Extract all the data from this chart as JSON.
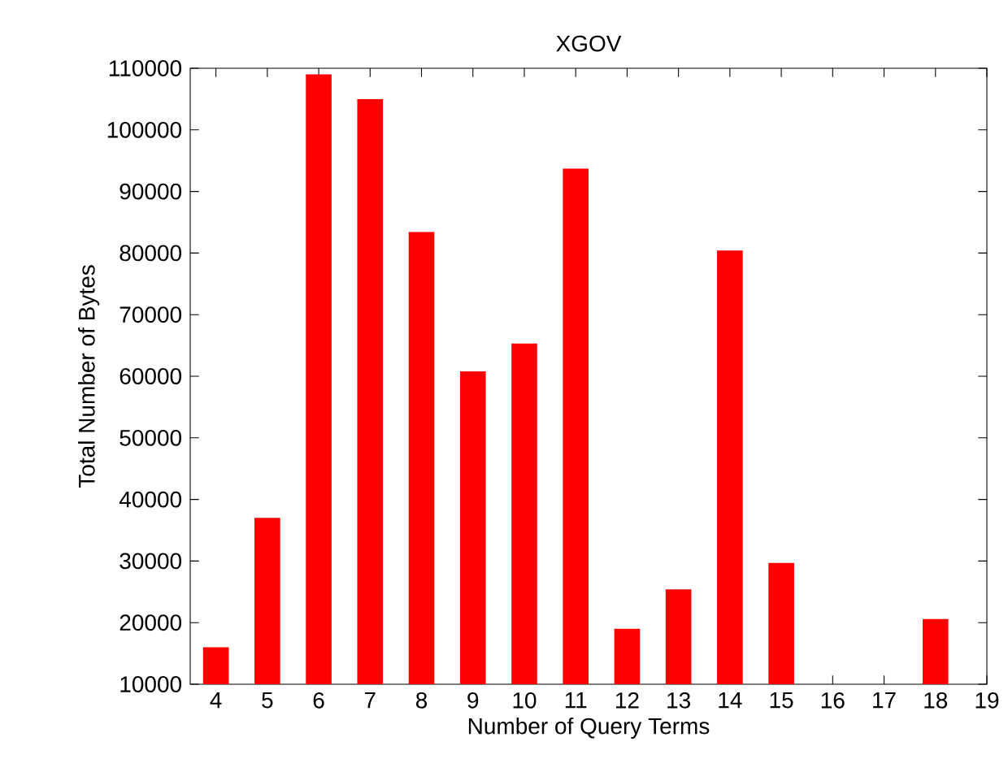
{
  "chart_data": {
    "type": "bar",
    "title": "XGOV",
    "xlabel": "Number of Query Terms",
    "ylabel": "Total Number of Bytes",
    "x": [
      4,
      5,
      6,
      7,
      8,
      9,
      10,
      11,
      12,
      13,
      14,
      15,
      18
    ],
    "values": [
      16000,
      37000,
      109000,
      105000,
      83400,
      60800,
      65300,
      93700,
      19000,
      25400,
      80400,
      29700,
      20600
    ],
    "color": "#ff0000",
    "xlim": [
      3.5,
      19
    ],
    "xticks": [
      4,
      5,
      6,
      7,
      8,
      9,
      10,
      11,
      12,
      13,
      14,
      15,
      16,
      17,
      18,
      19
    ],
    "ylim": [
      10000,
      110000
    ],
    "yticks": [
      10000,
      20000,
      30000,
      40000,
      50000,
      60000,
      70000,
      80000,
      90000,
      100000,
      110000
    ],
    "grid": false
  }
}
